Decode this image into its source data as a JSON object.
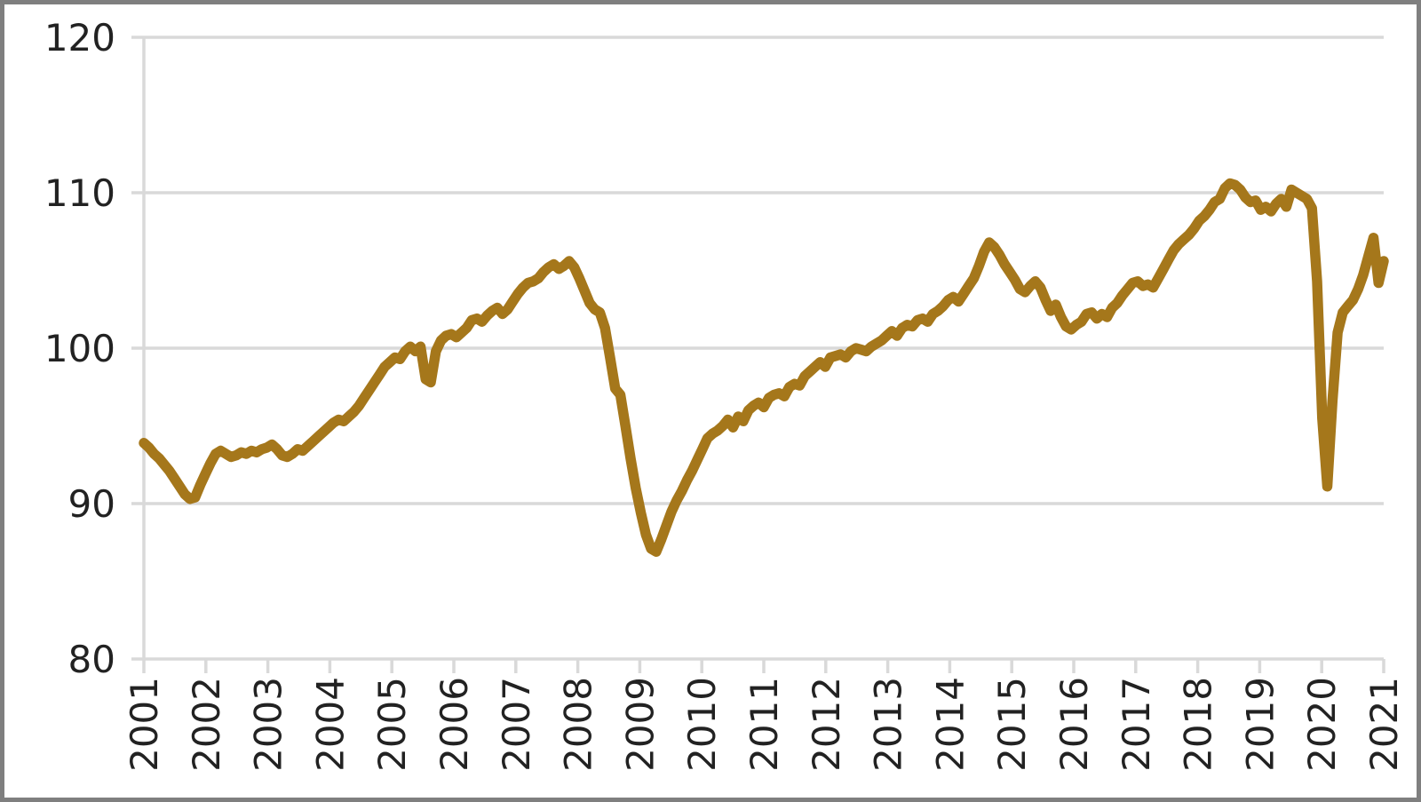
{
  "chart_data": {
    "type": "line",
    "title": "",
    "subtitle": "",
    "legend": "none",
    "grid": true,
    "y_axis": {
      "min": 80,
      "max": 120,
      "tick_step": 10,
      "tick_labels": [
        "120",
        "110",
        "100",
        "90",
        "80"
      ]
    },
    "x_axis": {
      "tick_labels": [
        "2001",
        "2002",
        "2003",
        "2004",
        "2005",
        "2006",
        "2007",
        "2008",
        "2009",
        "2010",
        "2011",
        "2012",
        "2013",
        "2014",
        "2015",
        "2016",
        "2017",
        "2018",
        "2019",
        "2020",
        "2021"
      ],
      "label_rotation_deg": -90
    },
    "series": [
      {
        "name": "index-line",
        "period": "monthly",
        "start": "2001-01",
        "end": "2021-03",
        "color": "#A5771B",
        "values": [
          93.9,
          93.6,
          93.2,
          92.9,
          92.5,
          92.1,
          91.6,
          91.1,
          90.6,
          90.3,
          90.4,
          91.2,
          91.9,
          92.6,
          93.2,
          93.4,
          93.2,
          93.0,
          93.1,
          93.3,
          93.2,
          93.4,
          93.3,
          93.5,
          93.6,
          93.8,
          93.5,
          93.1,
          93.0,
          93.2,
          93.5,
          93.4,
          93.7,
          94.0,
          94.3,
          94.6,
          94.9,
          95.2,
          95.4,
          95.3,
          95.6,
          95.9,
          96.3,
          96.8,
          97.3,
          97.8,
          98.3,
          98.8,
          99.1,
          99.4,
          99.3,
          99.8,
          100.1,
          99.8,
          100.1,
          98.0,
          97.8,
          99.8,
          100.5,
          100.8,
          100.9,
          100.7,
          101.0,
          101.3,
          101.8,
          101.9,
          101.7,
          102.1,
          102.4,
          102.6,
          102.2,
          102.5,
          103.0,
          103.5,
          103.9,
          104.2,
          104.3,
          104.5,
          104.9,
          105.2,
          105.4,
          105.1,
          105.3,
          105.6,
          105.2,
          104.5,
          103.7,
          102.9,
          102.5,
          102.3,
          101.3,
          99.4,
          97.4,
          97.0,
          95.0,
          92.9,
          91.0,
          89.4,
          88.0,
          87.1,
          86.9,
          87.7,
          88.6,
          89.5,
          90.2,
          90.8,
          91.5,
          92.1,
          92.8,
          93.5,
          94.2,
          94.5,
          94.7,
          95.0,
          95.4,
          94.9,
          95.6,
          95.3,
          96.0,
          96.3,
          96.5,
          96.2,
          96.8,
          97.0,
          97.1,
          96.9,
          97.5,
          97.7,
          97.6,
          98.2,
          98.5,
          98.8,
          99.1,
          98.8,
          99.4,
          99.5,
          99.6,
          99.4,
          99.8,
          100.0,
          99.9,
          99.8,
          100.1,
          100.3,
          100.5,
          100.8,
          101.1,
          100.8,
          101.3,
          101.5,
          101.4,
          101.8,
          101.9,
          101.7,
          102.2,
          102.4,
          102.7,
          103.1,
          103.3,
          103.0,
          103.5,
          104.0,
          104.5,
          105.3,
          106.2,
          106.8,
          106.5,
          106.0,
          105.4,
          104.9,
          104.4,
          103.8,
          103.6,
          104.0,
          104.3,
          103.9,
          103.1,
          102.4,
          102.8,
          102.0,
          101.4,
          101.2,
          101.5,
          101.7,
          102.2,
          102.3,
          101.9,
          102.2,
          102.0,
          102.6,
          102.9,
          103.4,
          103.8,
          104.2,
          104.3,
          104.0,
          104.1,
          103.9,
          104.5,
          105.1,
          105.7,
          106.3,
          106.7,
          107.0,
          107.3,
          107.7,
          108.2,
          108.5,
          108.9,
          109.4,
          109.6,
          110.3,
          110.6,
          110.5,
          110.2,
          109.7,
          109.4,
          109.5,
          108.9,
          109.1,
          108.8,
          109.3,
          109.6,
          109.1,
          110.2,
          110.0,
          109.8,
          109.6,
          109.0,
          104.3,
          95.5,
          91.1,
          96.6,
          101.0,
          102.3,
          102.7,
          103.1,
          103.8,
          104.7,
          105.9,
          107.1,
          104.2,
          105.6
        ]
      }
    ]
  },
  "colors": {
    "line": "#A5771B",
    "grid": "#D9D9D9",
    "axis": "#D9D9D9",
    "label": "#222222",
    "border": "#7F7F7F",
    "background": "#FFFFFF"
  }
}
